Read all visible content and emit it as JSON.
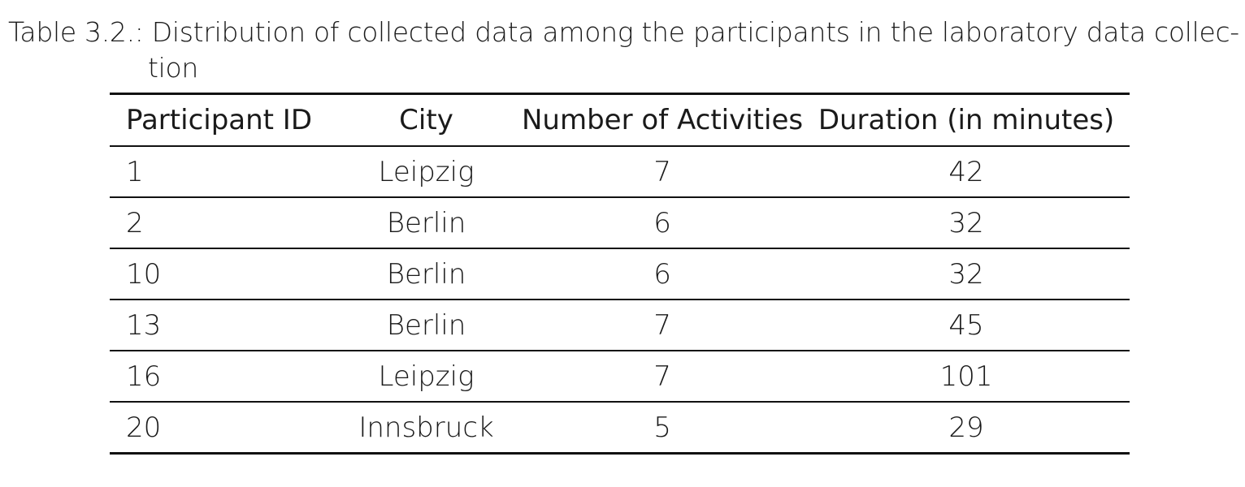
{
  "caption": {
    "line1": "Table 3.2.: Distribution of collected data among the participants in the laboratory data collec-",
    "line2": "tion"
  },
  "table": {
    "headers": [
      "Participant ID",
      "City",
      "Number of Activities",
      "Duration (in minutes)"
    ],
    "rows": [
      [
        "1",
        "Leipzig",
        "7",
        "42"
      ],
      [
        "2",
        "Berlin",
        "6",
        "32"
      ],
      [
        "10",
        "Berlin",
        "6",
        "32"
      ],
      [
        "13",
        "Berlin",
        "7",
        "45"
      ],
      [
        "16",
        "Leipzig",
        "7",
        "101"
      ],
      [
        "20",
        "Innsbruck",
        "5",
        "29"
      ]
    ]
  }
}
